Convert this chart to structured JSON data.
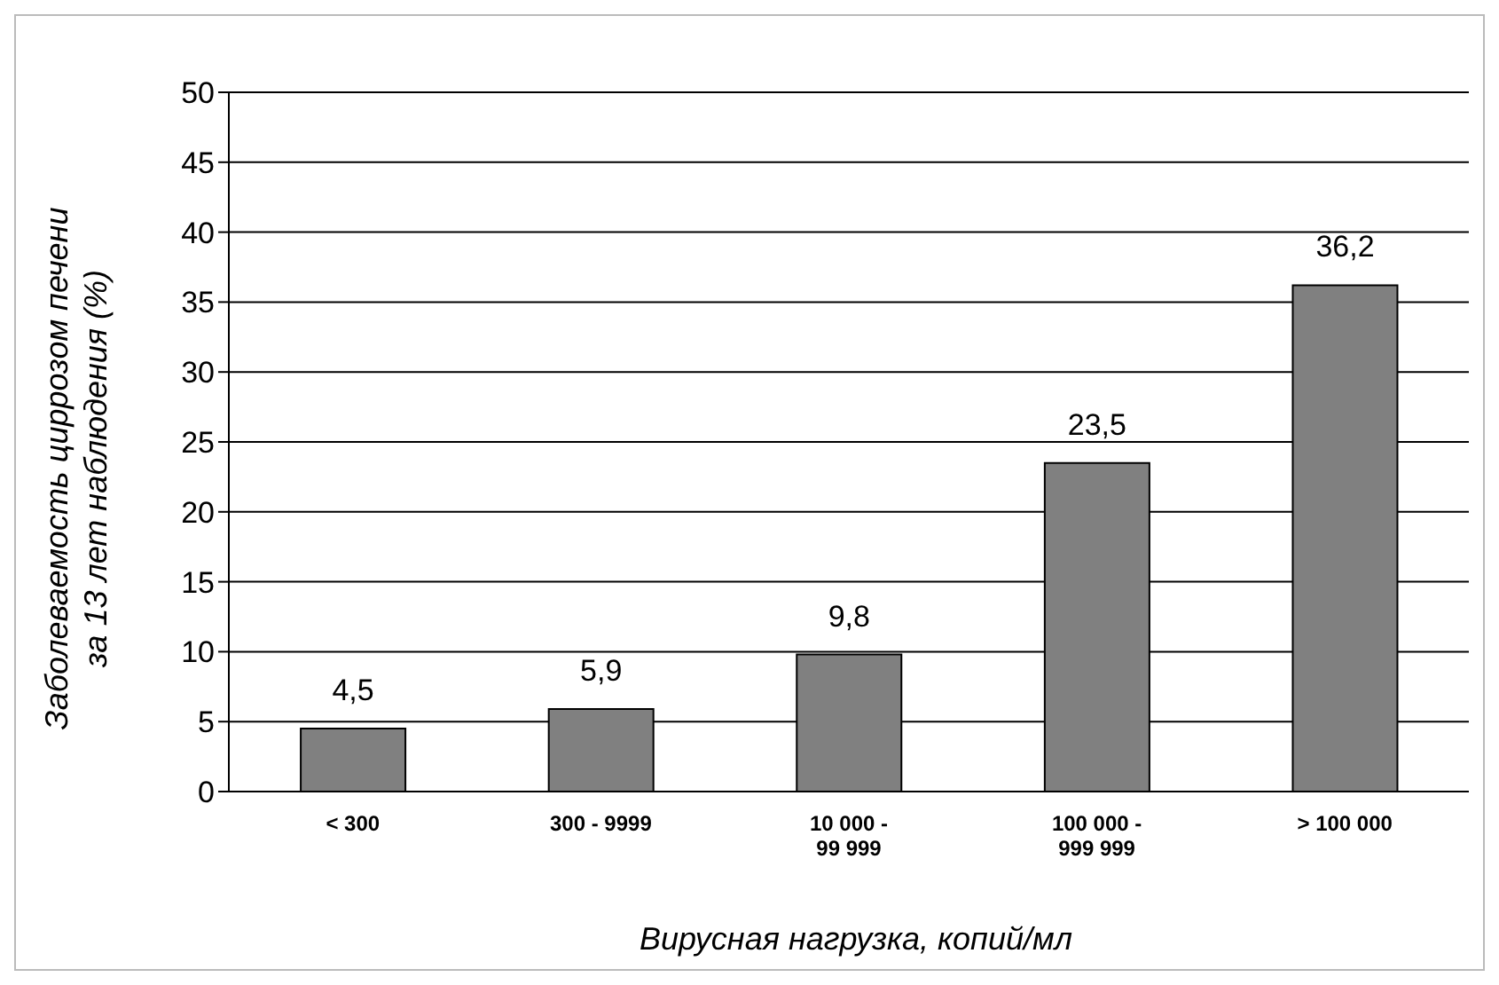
{
  "chart_data": {
    "type": "bar",
    "ylabel": "Заболеваемость циррозом печени за 13 лет наблюдения (%)",
    "xlabel": "Вирусная нагрузка, копий/мл",
    "categories": [
      "< 300",
      "300 - 9999",
      "10 000 - 99 999",
      "100 000 - 999 999",
      "> 100 000"
    ],
    "values": [
      4.5,
      5.9,
      9.8,
      23.5,
      36.2
    ],
    "value_labels": [
      "4,5",
      "5,9",
      "9,8",
      "23,5",
      "36,2"
    ],
    "color": "#808080",
    "ylim": [
      0,
      50
    ],
    "yticks": [
      0,
      5,
      10,
      15,
      20,
      25,
      30,
      35,
      40,
      45,
      50
    ],
    "grid": "y",
    "legend": false
  }
}
